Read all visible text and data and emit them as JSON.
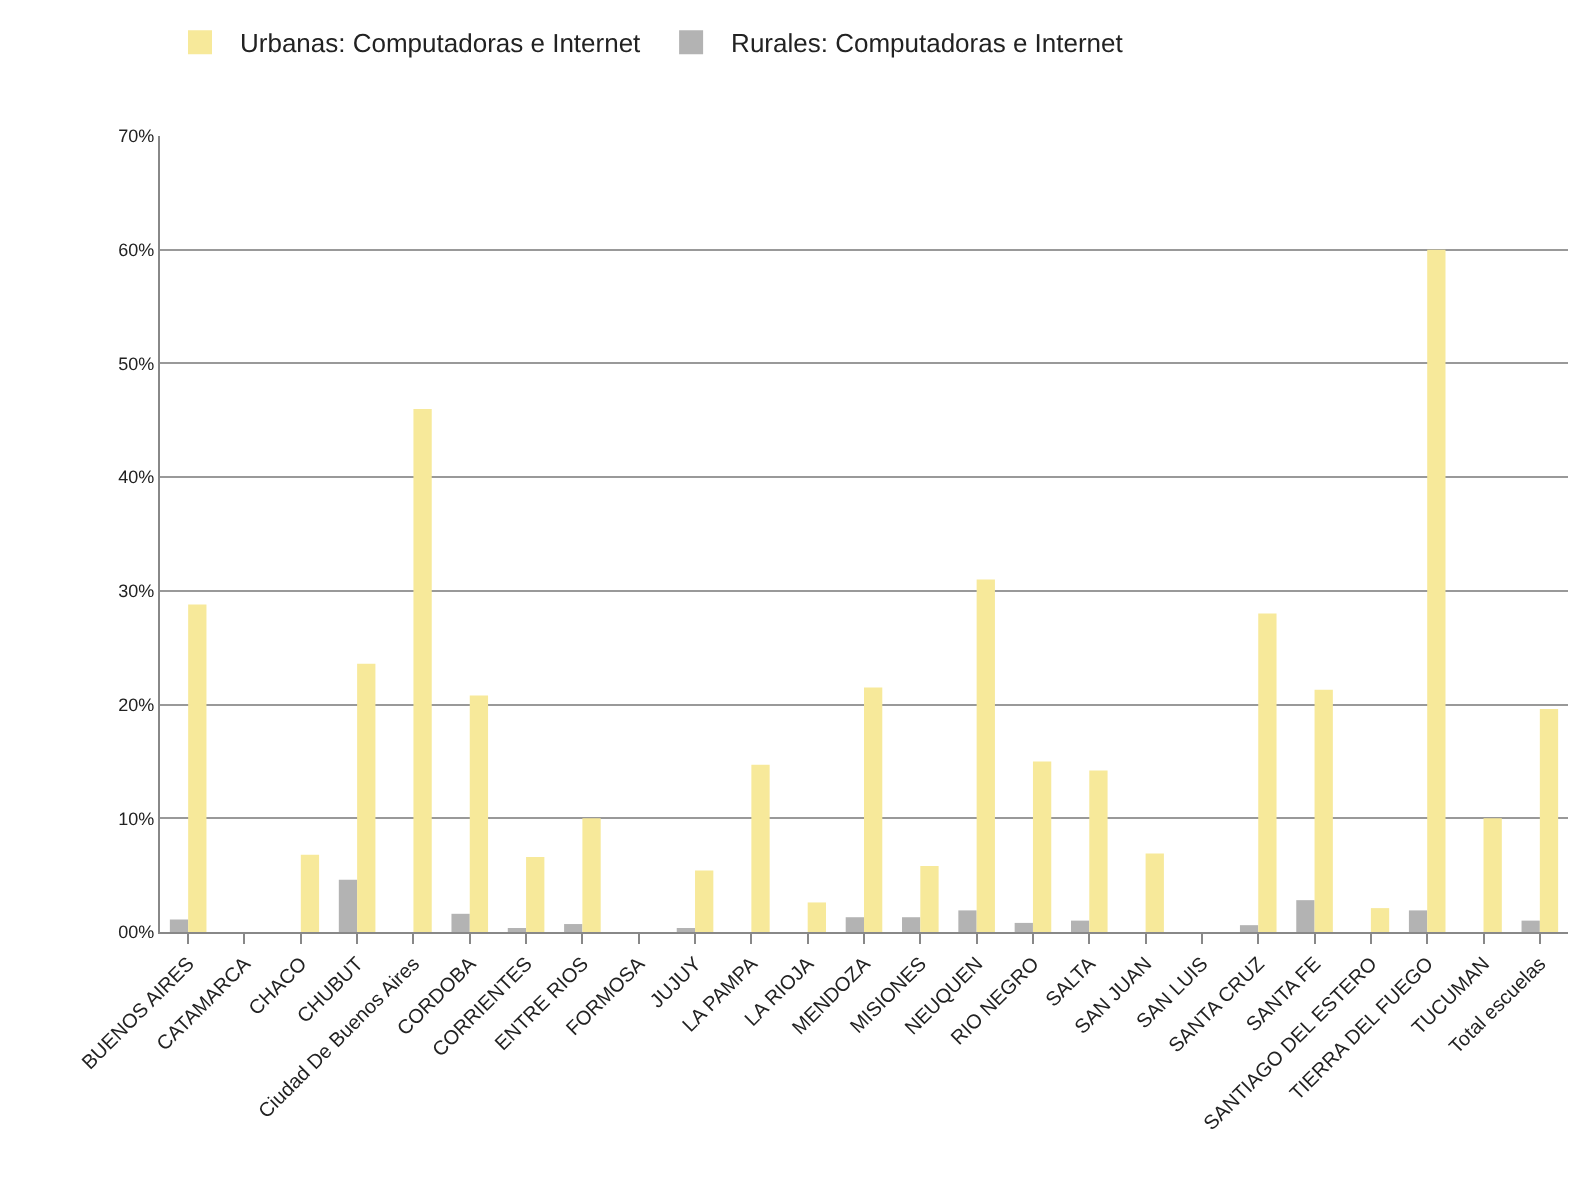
{
  "chart_data": {
    "type": "bar",
    "categories": [
      "BUENOS AIRES",
      "CATAMARCA",
      "CHACO",
      "CHUBUT",
      "Ciudad De Buenos Aires",
      "CORDOBA",
      "CORRIENTES",
      "ENTRE RIOS",
      "FORMOSA",
      "JUJUY",
      "LA PAMPA",
      "LA RIOJA",
      "MENDOZA",
      "MISIONES",
      "NEUQUEN",
      "RIO NEGRO",
      "SALTA",
      "SAN JUAN",
      "SAN LUIS",
      "SANTA CRUZ",
      "SANTA FE",
      "SANTIAGO DEL ESTERO",
      "TIERRA DEL FUEGO",
      "TUCUMAN",
      "Total escuelas"
    ],
    "series": [
      {
        "name": "Rurales: Computadoras e Internet",
        "color": "#b3b3b3",
        "values": [
          1.1,
          0,
          0,
          4.6,
          0,
          1.6,
          0.2,
          0.7,
          0,
          0.2,
          0,
          0,
          1.3,
          1.3,
          1.9,
          0.8,
          1.0,
          0,
          0,
          0.6,
          2.8,
          0,
          1.9,
          0,
          1.0
        ]
      },
      {
        "name": "Urbanas: Computadoras e Internet",
        "color": "#f7e99a",
        "values": [
          28.8,
          0,
          6.8,
          23.6,
          46,
          20.8,
          6.6,
          10,
          0,
          5.4,
          14.7,
          2.6,
          21.5,
          5.8,
          31,
          15,
          14.2,
          6.9,
          0,
          28,
          21.3,
          2.1,
          60,
          10,
          19.6
        ]
      }
    ],
    "ylim": [
      0,
      70
    ],
    "yticks": [
      {
        "value": 0,
        "label": "00%"
      },
      {
        "value": 10,
        "label": "10%"
      },
      {
        "value": 20,
        "label": "20%"
      },
      {
        "value": 30,
        "label": "30%"
      },
      {
        "value": 40,
        "label": "40%"
      },
      {
        "value": 50,
        "label": "50%"
      },
      {
        "value": 60,
        "label": "60%"
      },
      {
        "value": 70,
        "label": "70%"
      }
    ],
    "grid": "y",
    "legend": "top left"
  }
}
